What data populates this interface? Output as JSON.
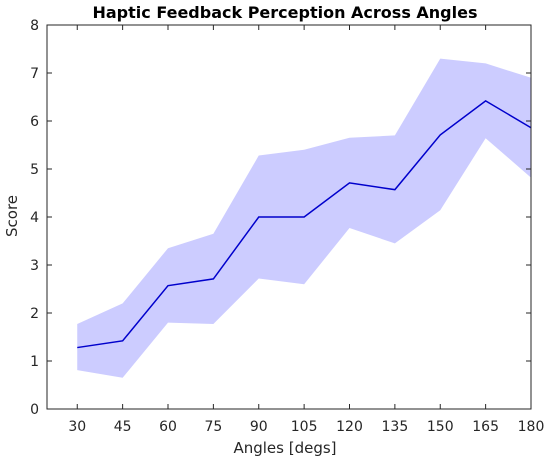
{
  "chart_data": {
    "type": "line",
    "title": "Haptic Feedback Perception Across Angles",
    "xlabel": "Angles [degs]",
    "ylabel": "Score",
    "x": [
      30,
      45,
      60,
      75,
      90,
      105,
      120,
      135,
      150,
      165,
      180
    ],
    "xlim": [
      20,
      180
    ],
    "ylim": [
      0,
      8
    ],
    "xticks": [
      30,
      45,
      60,
      75,
      90,
      105,
      120,
      135,
      150,
      165,
      180
    ],
    "yticks": [
      0,
      1,
      2,
      3,
      4,
      5,
      6,
      7,
      8
    ],
    "grid": false,
    "series": [
      {
        "values": [
          1.28,
          1.42,
          2.57,
          2.71,
          4.0,
          4.0,
          4.71,
          4.57,
          5.71,
          6.42,
          5.86
        ],
        "band_upper": [
          1.77,
          2.2,
          3.35,
          3.65,
          5.28,
          5.4,
          5.65,
          5.7,
          7.3,
          7.2,
          6.9
        ],
        "band_lower": [
          0.81,
          0.65,
          1.8,
          1.77,
          2.72,
          2.6,
          3.77,
          3.45,
          4.14,
          5.64,
          4.82
        ]
      }
    ],
    "colors": {
      "line": "#0000cc",
      "band": "#ccccff"
    }
  }
}
